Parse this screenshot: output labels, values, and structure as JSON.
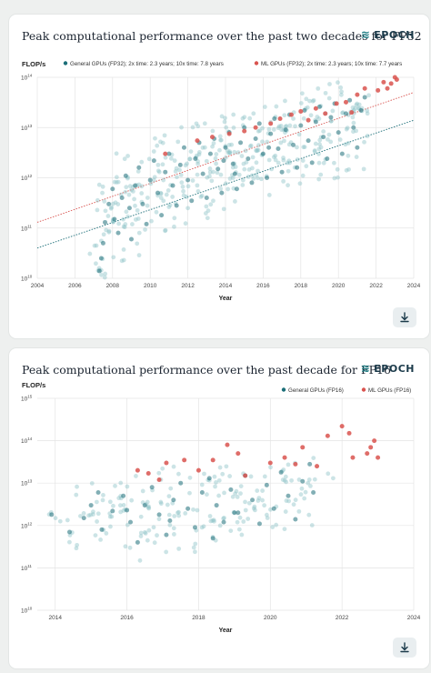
{
  "brand": {
    "name": "EPOCH",
    "icon": "epoch-logo-icon"
  },
  "download": {
    "icon": "download-icon"
  },
  "colors": {
    "general": "#1b6e78",
    "ml": "#d9534f",
    "general_light": "#8fc3c7",
    "ml_light": "#ef9a97",
    "grid": "#e4e4e4",
    "text": "#333333"
  },
  "chart_data": [
    {
      "type": "scatter",
      "title": "Peak computational performance over the past two decades for FP32",
      "ylabel": "FLOP/s",
      "xlabel": "Year",
      "y_scale": "log",
      "xlim": [
        2004,
        2024
      ],
      "ylim": [
        10000000000.0,
        100000000000000.0
      ],
      "x_ticks": [
        "2004",
        "2006",
        "2008",
        "2010",
        "2012",
        "2014",
        "2016",
        "2018",
        "2020",
        "2022",
        "2024"
      ],
      "y_ticks": [
        {
          "base": "10",
          "exp": "10"
        },
        {
          "base": "10",
          "exp": "11"
        },
        {
          "base": "10",
          "exp": "12"
        },
        {
          "base": "10",
          "exp": "13"
        },
        {
          "base": "10",
          "exp": "14"
        }
      ],
      "legend": [
        {
          "label": "General GPUs (FP32); 2x time: 2.3 years; 10x time: 7.8 years",
          "color": "#1b6e78"
        },
        {
          "label": "ML GPUs (FP32); 2x time: 2.3 years; 10x time: 7.7 years",
          "color": "#d9534f"
        }
      ],
      "trendlines": [
        {
          "series": "general",
          "x": [
            2004,
            2024
          ],
          "y": [
            40000000000.0,
            14000000000000.0
          ]
        },
        {
          "series": "ml",
          "x": [
            2004,
            2024
          ],
          "y": [
            130000000000.0,
            50000000000000.0
          ]
        }
      ],
      "series": [
        {
          "name": "General GPUs (FP32)",
          "color": "#1b6e78",
          "points": [
            [
              2007.3,
              14000000000.0
            ],
            [
              2007.4,
              25000000000.0
            ],
            [
              2007.5,
              50000000000.0
            ],
            [
              2007.6,
              130000000000.0
            ],
            [
              2007.8,
              300000000000.0
            ],
            [
              2008.0,
              600000000000.0
            ],
            [
              2008.1,
              150000000000.0
            ],
            [
              2008.3,
              80000000000.0
            ],
            [
              2008.5,
              400000000000.0
            ],
            [
              2008.7,
              1100000000000.0
            ],
            [
              2008.9,
              250000000000.0
            ],
            [
              2009.0,
              60000000000.0
            ],
            [
              2009.2,
              700000000000.0
            ],
            [
              2009.4,
              1600000000000.0
            ],
            [
              2009.6,
              300000000000.0
            ],
            [
              2009.8,
              120000000000.0
            ],
            [
              2010.0,
              900000000000.0
            ],
            [
              2010.2,
              2200000000000.0
            ],
            [
              2010.4,
              500000000000.0
            ],
            [
              2010.6,
              180000000000.0
            ],
            [
              2010.8,
              1300000000000.0
            ],
            [
              2011.0,
              3000000000000.0
            ],
            [
              2011.2,
              700000000000.0
            ],
            [
              2011.4,
              280000000000.0
            ],
            [
              2011.6,
              1800000000000.0
            ],
            [
              2011.8,
              4000000000000.0
            ],
            [
              2012.0,
              900000000000.0
            ],
            [
              2012.2,
              350000000000.0
            ],
            [
              2012.4,
              2400000000000.0
            ],
            [
              2012.6,
              5000000000000.0
            ],
            [
              2012.8,
              1200000000000.0
            ],
            [
              2013.0,
              400000000000.0
            ],
            [
              2013.2,
              3000000000000.0
            ],
            [
              2013.4,
              6000000000000.0
            ],
            [
              2013.6,
              1500000000000.0
            ],
            [
              2013.8,
              500000000000.0
            ],
            [
              2014.0,
              4000000000000.0
            ],
            [
              2014.2,
              8000000000000.0
            ],
            [
              2014.4,
              1900000000000.0
            ],
            [
              2014.6,
              600000000000.0
            ],
            [
              2014.8,
              5000000000000.0
            ],
            [
              2015.0,
              10000000000000.0
            ],
            [
              2015.2,
              2400000000000.0
            ],
            [
              2015.4,
              800000000000.0
            ],
            [
              2015.6,
              6000000000000.0
            ],
            [
              2015.8,
              12000000000000.0
            ],
            [
              2016.0,
              3000000000000.0
            ],
            [
              2016.2,
              1000000000000.0
            ],
            [
              2016.4,
              7500000000000.0
            ],
            [
              2016.6,
              15000000000000.0
            ],
            [
              2016.8,
              3800000000000.0
            ],
            [
              2017.0,
              1300000000000.0
            ],
            [
              2017.2,
              9000000000000.0
            ],
            [
              2017.4,
              18000000000000.0
            ],
            [
              2017.6,
              4500000000000.0
            ],
            [
              2017.8,
              1600000000000.0
            ],
            [
              2018.0,
              11000000000000.0
            ],
            [
              2018.2,
              22000000000000.0
            ],
            [
              2018.4,
              5500000000000.0
            ],
            [
              2018.6,
              2000000000000.0
            ],
            [
              2018.8,
              13000000000000.0
            ],
            [
              2019.0,
              26000000000000.0
            ],
            [
              2019.2,
              6500000000000.0
            ],
            [
              2019.4,
              2400000000000.0
            ],
            [
              2019.6,
              16000000000000.0
            ],
            [
              2019.8,
              30000000000000.0
            ],
            [
              2020.0,
              8000000000000.0
            ],
            [
              2020.2,
              3000000000000.0
            ],
            [
              2020.4,
              19000000000000.0
            ],
            [
              2020.6,
              35000000000000.0
            ],
            [
              2020.8,
              10000000000000.0
            ],
            [
              2021.0,
              4000000000000.0
            ],
            [
              2021.2,
              22000000000000.0
            ],
            [
              2021.4,
              40000000000000.0
            ],
            [
              2014.5,
              1200000000000.0
            ],
            [
              2013.9,
              2200000000000.0
            ],
            [
              2016.3,
              4000000000000.0
            ]
          ]
        },
        {
          "name": "ML GPUs (FP32)",
          "color": "#d9534f",
          "points": [
            [
              2010.8,
              3000000000000.0
            ],
            [
              2012.5,
              5500000000000.0
            ],
            [
              2013.3,
              6500000000000.0
            ],
            [
              2014.2,
              7500000000000.0
            ],
            [
              2015.0,
              8500000000000.0
            ],
            [
              2015.6,
              10000000000000.0
            ],
            [
              2016.4,
              12000000000000.0
            ],
            [
              2016.9,
              15000000000000.0
            ],
            [
              2017.5,
              18000000000000.0
            ],
            [
              2018.0,
              21000000000000.0
            ],
            [
              2018.4,
              14000000000000.0
            ],
            [
              2018.8,
              24000000000000.0
            ],
            [
              2019.3,
              19000000000000.0
            ],
            [
              2019.9,
              30000000000000.0
            ],
            [
              2020.4,
              32000000000000.0
            ],
            [
              2020.7,
              20000000000000.0
            ],
            [
              2021.0,
              45000000000000.0
            ],
            [
              2021.4,
              60000000000000.0
            ],
            [
              2022.1,
              55000000000000.0
            ],
            [
              2022.4,
              80000000000000.0
            ],
            [
              2022.8,
              75000000000000.0
            ],
            [
              2023.0,
              100000000000000.0
            ],
            [
              2023.1,
              90000000000000.0
            ],
            [
              2022.6,
              60000000000000.0
            ]
          ]
        }
      ]
    },
    {
      "type": "scatter",
      "title": "Peak computational performance over the past decade for FP16",
      "ylabel": "FLOP/s",
      "xlabel": "Year",
      "y_scale": "log",
      "xlim": [
        2013.5,
        2024
      ],
      "ylim": [
        10000000000.0,
        1000000000000000.0
      ],
      "x_ticks": [
        "2014",
        "2016",
        "2018",
        "2020",
        "2022",
        "2024"
      ],
      "y_ticks": [
        {
          "base": "10",
          "exp": "10"
        },
        {
          "base": "10",
          "exp": "11"
        },
        {
          "base": "10",
          "exp": "12"
        },
        {
          "base": "10",
          "exp": "13"
        },
        {
          "base": "10",
          "exp": "14"
        },
        {
          "base": "10",
          "exp": "15"
        }
      ],
      "legend": [
        {
          "label": "General GPUs (FP16)",
          "color": "#1b6e78"
        },
        {
          "label": "ML GPUs (FP16)",
          "color": "#d9534f"
        }
      ],
      "series": [
        {
          "name": "General GPUs (FP16)",
          "color": "#1b6e78",
          "points": [
            [
              2013.9,
              1800000000000.0
            ],
            [
              2014.4,
              700000000000.0
            ],
            [
              2014.8,
              1500000000000.0
            ],
            [
              2015.0,
              3000000000000.0
            ],
            [
              2015.3,
              800000000000.0
            ],
            [
              2015.6,
              2200000000000.0
            ],
            [
              2015.9,
              5000000000000.0
            ],
            [
              2016.1,
              1200000000000.0
            ],
            [
              2016.3,
              400000000000.0
            ],
            [
              2016.5,
              3000000000000.0
            ],
            [
              2016.7,
              8000000000000.0
            ],
            [
              2016.9,
              1800000000000.0
            ],
            [
              2017.1,
              600000000000.0
            ],
            [
              2017.3,
              4000000000000.0
            ],
            [
              2017.5,
              10000000000000.0
            ],
            [
              2017.7,
              2500000000000.0
            ],
            [
              2017.9,
              900000000000.0
            ],
            [
              2018.1,
              6000000000000.0
            ],
            [
              2018.3,
              13000000000000.0
            ],
            [
              2018.5,
              3000000000000.0
            ],
            [
              2018.7,
              1200000000000.0
            ],
            [
              2018.9,
              7000000000000.0
            ],
            [
              2019.1,
              2000000000000.0
            ],
            [
              2019.3,
              15000000000000.0
            ],
            [
              2019.5,
              4000000000000.0
            ],
            [
              2019.7,
              1100000000000.0
            ],
            [
              2019.9,
              9000000000000.0
            ],
            [
              2020.1,
              2500000000000.0
            ],
            [
              2020.3,
              18000000000000.0
            ],
            [
              2020.5,
              5000000000000.0
            ],
            [
              2020.7,
              1400000000000.0
            ],
            [
              2020.9,
              11000000000000.0
            ],
            [
              2021.1,
              28000000000000.0
            ],
            [
              2021.2,
              6000000000000.0
            ],
            [
              2019.0,
              2000000000000.0
            ],
            [
              2017.2,
              1300000000000.0
            ],
            [
              2018.4,
              500000000000.0
            ],
            [
              2016.0,
              2300000000000.0
            ],
            [
              2015.2,
              6000000000000.0
            ]
          ]
        },
        {
          "name": "ML GPUs (FP16)",
          "color": "#d9534f",
          "points": [
            [
              2016.3,
              20000000000000.0
            ],
            [
              2016.6,
              17000000000000.0
            ],
            [
              2016.9,
              12000000000000.0
            ],
            [
              2017.1,
              30000000000000.0
            ],
            [
              2017.6,
              35000000000000.0
            ],
            [
              2018.0,
              20000000000000.0
            ],
            [
              2018.4,
              35000000000000.0
            ],
            [
              2018.8,
              80000000000000.0
            ],
            [
              2019.1,
              50000000000000.0
            ],
            [
              2019.3,
              15000000000000.0
            ],
            [
              2020.0,
              30000000000000.0
            ],
            [
              2020.4,
              40000000000000.0
            ],
            [
              2020.7,
              28000000000000.0
            ],
            [
              2020.9,
              70000000000000.0
            ],
            [
              2021.3,
              25000000000000.0
            ],
            [
              2021.6,
              130000000000000.0
            ],
            [
              2022.0,
              220000000000000.0
            ],
            [
              2022.2,
              150000000000000.0
            ],
            [
              2022.3,
              40000000000000.0
            ],
            [
              2022.8,
              70000000000000.0
            ],
            [
              2022.9,
              100000000000000.0
            ],
            [
              2023.0,
              40000000000000.0
            ],
            [
              2022.7,
              50000000000000.0
            ]
          ]
        }
      ]
    }
  ]
}
